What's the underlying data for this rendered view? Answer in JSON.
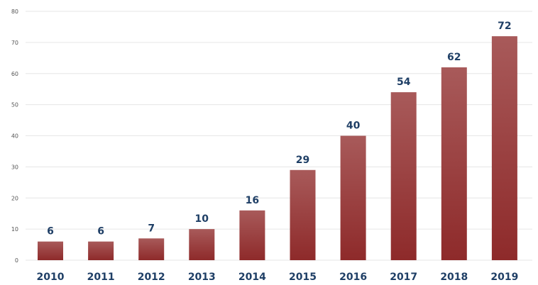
{
  "chart_data": {
    "type": "bar",
    "title": "",
    "xlabel": "",
    "ylabel": "",
    "categories": [
      "2010",
      "2011",
      "2012",
      "2013",
      "2014",
      "2015",
      "2016",
      "2017",
      "2018",
      "2019"
    ],
    "values": [
      6,
      6,
      7,
      10,
      16,
      29,
      40,
      54,
      62,
      72
    ],
    "data_labels": [
      "6",
      "6",
      "7",
      "10",
      "16",
      "29",
      "40",
      "54",
      "62",
      "72"
    ],
    "ylim": [
      0,
      80
    ],
    "yticks": [
      "0",
      "10",
      "20",
      "30",
      "40",
      "50",
      "60",
      "70",
      "80"
    ],
    "grid": true,
    "legend": "none",
    "bar_color_top": "#a85a5a",
    "bar_color_bottom": "#8e2a2a",
    "label_color": "#1f3f66",
    "grid_color": "#e6e6e6"
  }
}
